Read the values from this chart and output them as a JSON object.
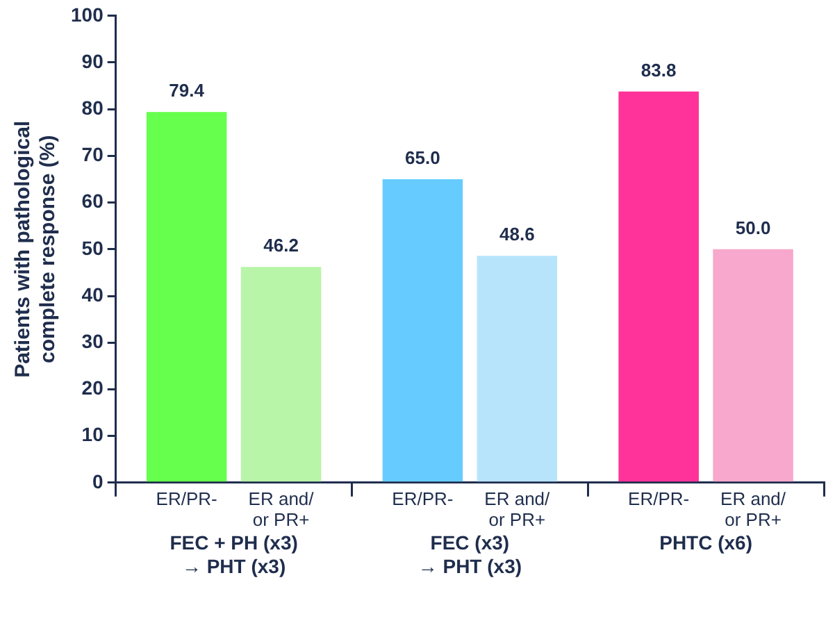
{
  "chart_data": {
    "type": "bar",
    "ylabel": "Patients with pathological\ncomplete response (%)",
    "categories": [
      "FEC + PH (x3)\n→ PHT (x3)",
      "FEC (x3)\n→ PHT (x3)",
      "PHTC (x6)"
    ],
    "series": [
      {
        "name": "ER/PR-",
        "colors": [
          "#66ff4d",
          "#66ccff",
          "#ff3399"
        ],
        "values": [
          79.4,
          65.0,
          83.8
        ],
        "value_labels": [
          "79.4",
          "65.0",
          "83.8"
        ]
      },
      {
        "name": "ER and/\nor PR+",
        "colors": [
          "#b8f5a8",
          "#b8e4fb",
          "#f7a8cc"
        ],
        "values": [
          46.2,
          48.6,
          50.0
        ],
        "value_labels": [
          "46.2",
          "48.6",
          "50.0"
        ]
      }
    ],
    "ylim": [
      0,
      100
    ],
    "yticks": [
      0,
      10,
      20,
      30,
      40,
      50,
      60,
      70,
      80,
      90,
      100
    ],
    "grid": false,
    "legend": false
  }
}
